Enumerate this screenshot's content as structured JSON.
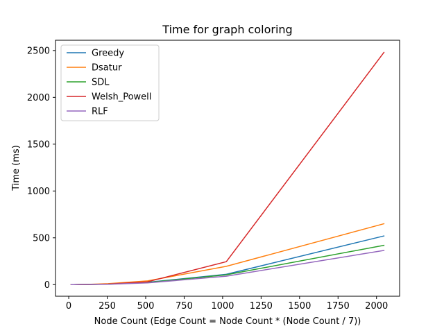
{
  "chart_data": {
    "type": "line",
    "title": "Time for graph coloring",
    "xlabel": "Node Count (Edge Count = Node Count * (Node Count / 7))",
    "ylabel": "Time (ms)",
    "x": [
      16,
      32,
      64,
      128,
      256,
      512,
      1024,
      2048
    ],
    "xlim": [
      -86,
      2150
    ],
    "ylim": [
      -124,
      2610
    ],
    "xticks": [
      0,
      250,
      500,
      750,
      1000,
      1250,
      1500,
      1750,
      2000
    ],
    "yticks": [
      0,
      500,
      1000,
      1500,
      2000,
      2500
    ],
    "xtick_labels": [
      "0",
      "250",
      "500",
      "750",
      "1000",
      "1250",
      "1500",
      "1750",
      "2000"
    ],
    "ytick_labels": [
      "0",
      "500",
      "1000",
      "1500",
      "2000",
      "2500"
    ],
    "grid": false,
    "legend_position": "top-left",
    "series": [
      {
        "name": "Greedy",
        "color": "#1f77b4",
        "values": [
          0,
          0,
          1,
          2,
          6,
          25,
          110,
          520
        ]
      },
      {
        "name": "Dsatur",
        "color": "#ff7f0e",
        "values": [
          0,
          0,
          1,
          3,
          10,
          40,
          195,
          650
        ]
      },
      {
        "name": "SDL",
        "color": "#2ca02c",
        "values": [
          0,
          0,
          1,
          2,
          5,
          22,
          105,
          420
        ]
      },
      {
        "name": "Welsh_Powell",
        "color": "#d62728",
        "values": [
          0,
          0,
          1,
          2,
          6,
          30,
          245,
          2480
        ]
      },
      {
        "name": "RLF",
        "color": "#9467bd",
        "values": [
          0,
          0,
          1,
          2,
          4,
          18,
          90,
          365
        ]
      }
    ]
  }
}
